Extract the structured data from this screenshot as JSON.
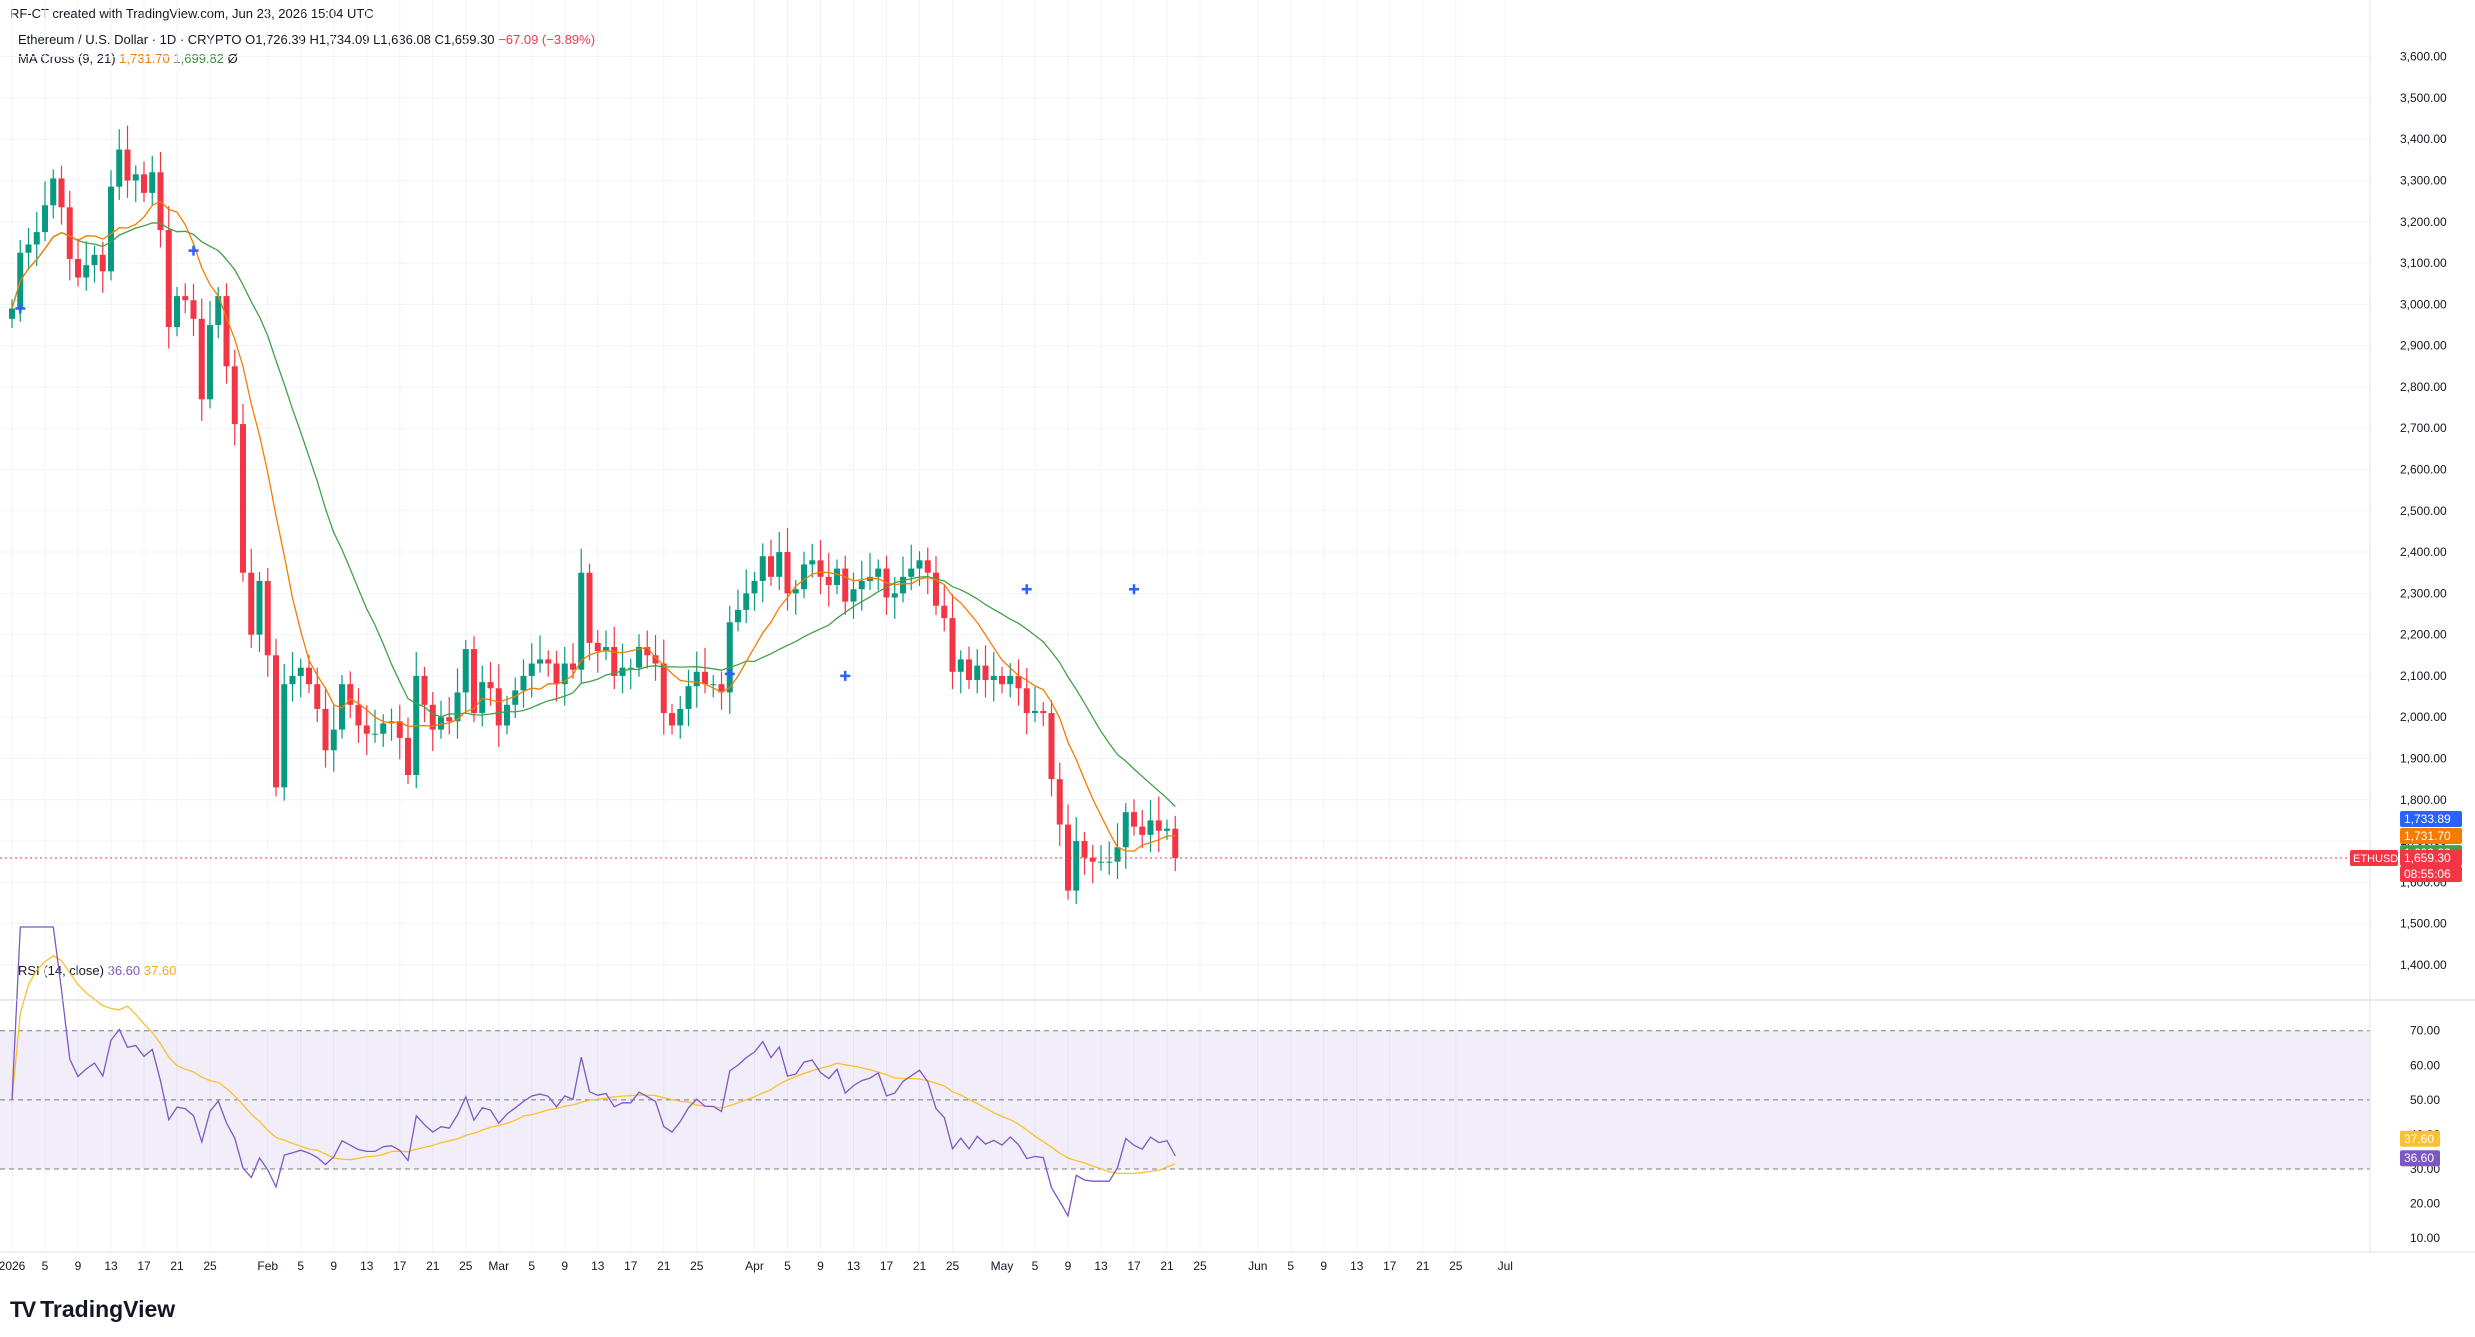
{
  "header": {
    "created_by": "RF-CT created with TradingView.com, Jun 23, 2026 15:04 UTC"
  },
  "symbol": {
    "name": "Ethereum / U.S. Dollar · 1D · CRYPTO",
    "open": "O1,726.39",
    "high": "H1,734.09",
    "low": "L1,636.08",
    "close": "C1,659.30",
    "change": "−67.09 (−3.89%)"
  },
  "ma_cross": {
    "label": "MA Cross (9, 21)",
    "fast": "1,731.70",
    "slow": "1,699.82",
    "extra": "Ø"
  },
  "rsi": {
    "label": "RSI (14, close)",
    "value": "36.60",
    "ma": "37.60"
  },
  "price_badges": {
    "b1": "1,733.89",
    "b2": "1,731.70",
    "b3": "1,699.82",
    "ticker": "ETHUSD",
    "last": "1,659.30",
    "countdown": "08:55:06"
  },
  "rsi_badges": {
    "ma": "37.60",
    "value": "36.60"
  },
  "colors": {
    "up": "#089981",
    "down": "#f23645",
    "fast_ma": "#f57c00",
    "slow_ma": "#43a047",
    "rsi": "#7e57c2",
    "rsi_ma": "#fbc02d",
    "cross": "#2962ff"
  },
  "branding": {
    "logo_text": "TradingView"
  },
  "chart_data": {
    "type": "candlestick",
    "price_axis": {
      "ticks": [
        "3,600.00",
        "3,500.00",
        "3,400.00",
        "3,300.00",
        "3,200.00",
        "3,100.00",
        "3,000.00",
        "2,900.00",
        "2,800.00",
        "2,700.00",
        "2,600.00",
        "2,500.00",
        "2,400.00",
        "2,300.00",
        "2,200.00",
        "2,100.00",
        "2,000.00",
        "1,900.00",
        "1,800.00",
        "1,700.00",
        "1,600.00",
        "1,500.00",
        "1,400.00"
      ],
      "range": [
        1315,
        3650
      ]
    },
    "rsi_axis": {
      "ticks": [
        "70.00",
        "60.00",
        "50.00",
        "40.00",
        "30.00",
        "20.00",
        "10.00"
      ],
      "range": [
        6,
        76
      ],
      "bands": [
        30,
        50,
        70
      ]
    },
    "time_axis": {
      "labels": [
        {
          "d": 0,
          "t": "2026"
        },
        {
          "d": 4,
          "t": "5"
        },
        {
          "d": 8,
          "t": "9"
        },
        {
          "d": 12,
          "t": "13"
        },
        {
          "d": 16,
          "t": "17"
        },
        {
          "d": 20,
          "t": "21"
        },
        {
          "d": 24,
          "t": "25"
        },
        {
          "d": 31,
          "t": "Feb"
        },
        {
          "d": 35,
          "t": "5"
        },
        {
          "d": 39,
          "t": "9"
        },
        {
          "d": 43,
          "t": "13"
        },
        {
          "d": 47,
          "t": "17"
        },
        {
          "d": 51,
          "t": "21"
        },
        {
          "d": 55,
          "t": "25"
        },
        {
          "d": 59,
          "t": "Mar"
        },
        {
          "d": 63,
          "t": "5"
        },
        {
          "d": 67,
          "t": "9"
        },
        {
          "d": 71,
          "t": "13"
        },
        {
          "d": 75,
          "t": "17"
        },
        {
          "d": 79,
          "t": "21"
        },
        {
          "d": 83,
          "t": "25"
        },
        {
          "d": 90,
          "t": "Apr"
        },
        {
          "d": 94,
          "t": "5"
        },
        {
          "d": 98,
          "t": "9"
        },
        {
          "d": 102,
          "t": "13"
        },
        {
          "d": 106,
          "t": "17"
        },
        {
          "d": 110,
          "t": "21"
        },
        {
          "d": 114,
          "t": "25"
        },
        {
          "d": 120,
          "t": "May"
        },
        {
          "d": 124,
          "t": "5"
        },
        {
          "d": 128,
          "t": "9"
        },
        {
          "d": 132,
          "t": "13"
        },
        {
          "d": 136,
          "t": "17"
        },
        {
          "d": 140,
          "t": "21"
        },
        {
          "d": 144,
          "t": "25"
        },
        {
          "d": 151,
          "t": "Jun"
        },
        {
          "d": 155,
          "t": "5"
        },
        {
          "d": 159,
          "t": "9"
        },
        {
          "d": 163,
          "t": "13"
        },
        {
          "d": 167,
          "t": "17"
        },
        {
          "d": 171,
          "t": "21"
        },
        {
          "d": 175,
          "t": "25"
        },
        {
          "d": 181,
          "t": "Jul"
        }
      ]
    },
    "closes": [
      2990,
      3125,
      3145,
      3175,
      3240,
      3305,
      3235,
      3110,
      3065,
      3095,
      3120,
      3080,
      3285,
      3375,
      3300,
      3315,
      3270,
      3320,
      3180,
      2945,
      3020,
      3010,
      2965,
      2770,
      2950,
      3020,
      2850,
      2710,
      2350,
      2200,
      2330,
      2150,
      1830,
      2080,
      2100,
      2120,
      2080,
      2020,
      1920,
      1970,
      2080,
      2030,
      1980,
      1960,
      1960,
      1985,
      1990,
      1950,
      1860,
      2100,
      2030,
      1970,
      2000,
      1990,
      2060,
      2165,
      2010,
      2085,
      2070,
      1980,
      2030,
      2065,
      2100,
      2130,
      2140,
      2130,
      2080,
      2130,
      2115,
      2350,
      2180,
      2160,
      2170,
      2100,
      2120,
      2120,
      2170,
      2150,
      2130,
      2010,
      1980,
      2020,
      2075,
      2110,
      2080,
      2080,
      2060,
      2230,
      2260,
      2300,
      2330,
      2390,
      2340,
      2400,
      2300,
      2310,
      2370,
      2380,
      2340,
      2320,
      2360,
      2280,
      2310,
      2330,
      2340,
      2360,
      2290,
      2300,
      2340,
      2360,
      2380,
      2350,
      2270,
      2240,
      2110,
      2140,
      2090,
      2125,
      2090,
      2100,
      2080,
      2100,
      2070,
      2010,
      2015,
      2010,
      1850,
      1740,
      1580,
      1700,
      1660,
      1650,
      1650,
      1650,
      1685,
      1770,
      1735,
      1715,
      1750,
      1725,
      1730,
      1659
    ],
    "candle_opens_note": "each candle opens at the previous close",
    "ma_cross_signals": [
      {
        "d": 1,
        "v": 2990
      },
      {
        "d": 22,
        "v": 3130
      },
      {
        "d": 87,
        "v": 2105
      },
      {
        "d": 101,
        "v": 2100
      },
      {
        "d": 123,
        "v": 2310
      },
      {
        "d": 136,
        "v": 2310
      }
    ]
  }
}
